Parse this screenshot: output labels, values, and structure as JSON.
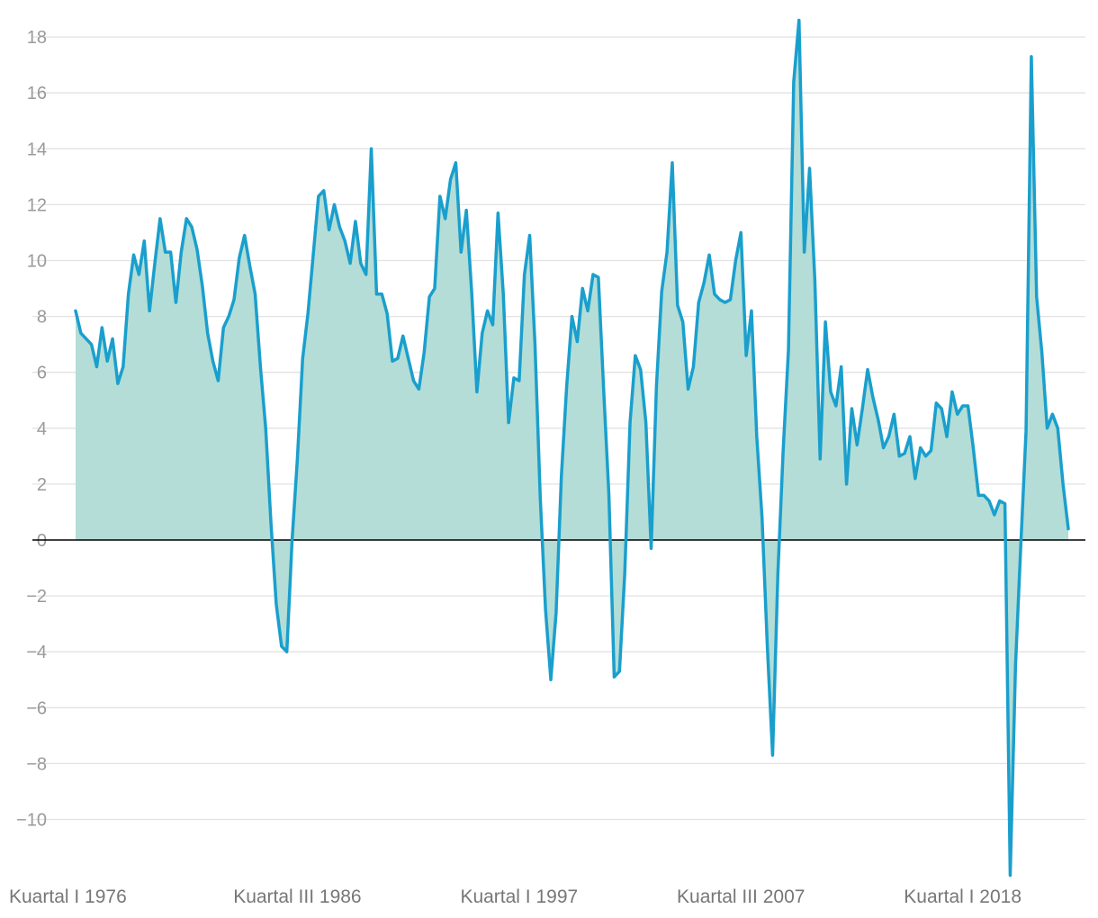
{
  "chart_data": {
    "type": "area",
    "title": "",
    "xlabel": "",
    "ylabel": "",
    "ylim": [
      -12,
      18.5
    ],
    "yticks": [
      -10,
      -8,
      -6,
      -4,
      -2,
      0,
      2,
      4,
      6,
      8,
      10,
      12,
      14,
      16,
      18
    ],
    "ytick_labels": [
      "−10",
      "−8",
      "−6",
      "−4",
      "−2",
      "0",
      "2",
      "4",
      "6",
      "8",
      "10",
      "12",
      "14",
      "16",
      "18"
    ],
    "xtick_labels": [
      "Kuartal I 1976",
      "Kuartal III 1986",
      "Kuartal I 1997",
      "Kuartal III 2007",
      "Kuartal I 2018"
    ],
    "xtick_indices": [
      0,
      42,
      84,
      126,
      168
    ],
    "grid": true,
    "legend": "none",
    "colors": {
      "line": "#1a9fcd",
      "fill": "#b3ddd6",
      "grid": "#e2e2e2",
      "zero_line": "#000000"
    },
    "series": [
      {
        "values": [
          8.2,
          7.4,
          7.2,
          7.0,
          6.2,
          7.6,
          6.4,
          7.2,
          5.6,
          6.2,
          8.8,
          10.2,
          9.5,
          10.7,
          8.2,
          9.9,
          11.5,
          10.3,
          10.3,
          8.5,
          10.3,
          11.5,
          11.2,
          10.4,
          9.1,
          7.4,
          6.4,
          5.7,
          7.6,
          8.0,
          8.6,
          10.1,
          10.9,
          9.8,
          8.8,
          6.2,
          4.0,
          0.6,
          -2.3,
          -3.8,
          -4.0,
          0.0,
          2.9,
          6.5,
          8.1,
          10.2,
          12.3,
          12.5,
          11.1,
          12.0,
          11.2,
          10.7,
          9.9,
          11.4,
          9.9,
          9.5,
          14.0,
          8.8,
          8.8,
          8.1,
          6.4,
          6.5,
          7.3,
          6.5,
          5.7,
          5.4,
          6.7,
          8.7,
          9.0,
          12.3,
          11.5,
          12.9,
          13.5,
          10.3,
          11.8,
          8.9,
          5.3,
          7.4,
          8.2,
          7.7,
          11.7,
          8.8,
          4.2,
          5.8,
          5.7,
          9.5,
          10.9,
          7.0,
          1.5,
          -2.5,
          -5.0,
          -2.6,
          2.3,
          5.5,
          8.0,
          7.1,
          9.0,
          8.2,
          9.5,
          9.4,
          5.4,
          1.6,
          -4.9,
          -4.7,
          -1.2,
          4.2,
          6.6,
          6.1,
          4.2,
          -0.3,
          5.5,
          8.9,
          10.3,
          13.5,
          8.4,
          7.8,
          5.4,
          6.2,
          8.5,
          9.2,
          10.2,
          8.8,
          8.6,
          8.5,
          8.6,
          10.0,
          11.0,
          6.6,
          8.2,
          3.7,
          0.8,
          -3.8,
          -7.7,
          -1.2,
          3.2,
          6.8,
          16.4,
          18.6,
          10.3,
          13.3,
          9.3,
          2.9,
          7.8,
          5.3,
          4.8,
          6.2,
          2.0,
          4.7,
          3.4,
          4.7,
          6.1,
          5.1,
          4.3,
          3.3,
          3.7,
          4.5,
          3.0,
          3.1,
          3.7,
          2.2,
          3.3,
          3.0,
          3.2,
          4.9,
          4.7,
          3.7,
          5.3,
          4.5,
          4.8,
          4.8,
          3.3,
          1.6,
          1.6,
          1.4,
          0.9,
          1.4,
          1.3,
          -12.0,
          -4.5,
          -0.2,
          3.9,
          17.3,
          8.7,
          6.7,
          4.0,
          4.5,
          4.0,
          2.0,
          0.4
        ]
      }
    ]
  }
}
